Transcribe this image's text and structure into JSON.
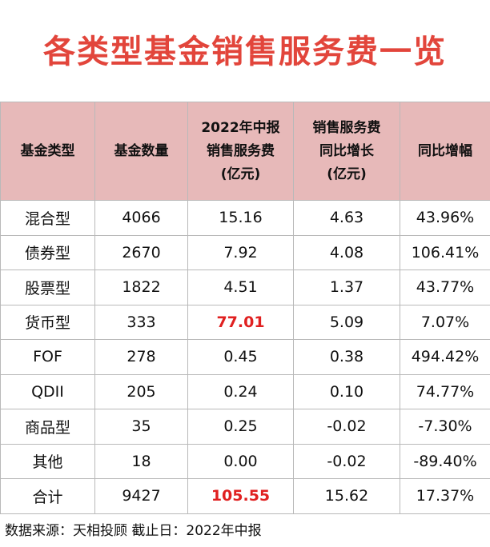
{
  "title": "各类型基金销售服务费一览",
  "colors": {
    "title": "#e2453b",
    "header_bg": "#e7b9b9",
    "highlight": "#e02020",
    "border": "#b9b9b9"
  },
  "table": {
    "headers": [
      [
        "基金类型"
      ],
      [
        "基金数量"
      ],
      [
        "2022年中报",
        "销售服务费",
        "(亿元)"
      ],
      [
        "销售服务费",
        "同比增长",
        "(亿元)"
      ],
      [
        "同比增幅"
      ]
    ],
    "rows": [
      [
        "混合型",
        "4066",
        "15.16",
        "4.63",
        "43.96%"
      ],
      [
        "债券型",
        "2670",
        "7.92",
        "4.08",
        "106.41%"
      ],
      [
        "股票型",
        "1822",
        "4.51",
        "1.37",
        "43.77%"
      ],
      [
        "货币型",
        "333",
        "77.01",
        "5.09",
        "7.07%"
      ],
      [
        "FOF",
        "278",
        "0.45",
        "0.38",
        "494.42%"
      ],
      [
        "QDII",
        "205",
        "0.24",
        "0.10",
        "74.77%"
      ],
      [
        "商品型",
        "35",
        "0.25",
        "-0.02",
        "-7.30%"
      ],
      [
        "其他",
        "18",
        "0.00",
        "-0.02",
        "-89.40%"
      ],
      [
        "合计",
        "9427",
        "105.55",
        "15.62",
        "17.37%"
      ]
    ],
    "highlighted_cells": [
      [
        3,
        2
      ],
      [
        8,
        2
      ]
    ]
  },
  "source": "数据来源：天相投顾  截止日：2022年中报"
}
